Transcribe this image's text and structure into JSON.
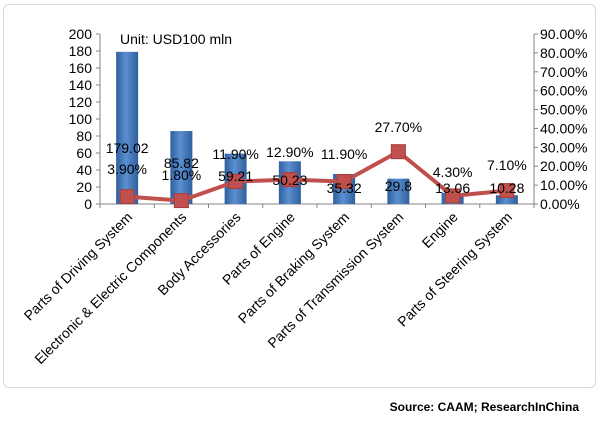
{
  "chart_data": {
    "type": "bar",
    "unit_label": "Unit: USD100 mln",
    "categories": [
      "Parts of Driving System",
      "Electronic & Electric Components",
      "Body Accessories",
      "Parts of Engine",
      "Parts of Braking System",
      "Parts of Transmission System",
      "Engine",
      "Parts of Steering System"
    ],
    "series": [
      {
        "type": "bar",
        "axis": "left",
        "color": "#4a7ebb",
        "values": [
          179.02,
          85.82,
          59.21,
          50.23,
          35.32,
          29.8,
          13.06,
          10.28
        ],
        "labels": [
          "179.02",
          "85.82",
          "59.21",
          "50.23",
          "35.32",
          "29.8",
          "13.06",
          "10.28"
        ]
      },
      {
        "type": "line",
        "axis": "right",
        "color": "#c0504d",
        "values": [
          3.9,
          1.8,
          11.9,
          12.9,
          11.9,
          27.7,
          4.3,
          7.1
        ],
        "labels": [
          "3.90%",
          "1.80%",
          "11.90%",
          "12.90%",
          "11.90%",
          "27.70%",
          "4.30%",
          "7.10%"
        ]
      }
    ],
    "ylim": [
      0,
      200
    ],
    "yticks": [
      "0",
      "20",
      "40",
      "60",
      "80",
      "100",
      "120",
      "140",
      "160",
      "180",
      "200"
    ],
    "y2lim": [
      0,
      90
    ],
    "y2ticks": [
      "0.00%",
      "10.00%",
      "20.00%",
      "30.00%",
      "40.00%",
      "50.00%",
      "60.00%",
      "70.00%",
      "80.00%",
      "90.00%"
    ],
    "grid": false
  },
  "source": "Source: CAAM; ResearchInChina"
}
